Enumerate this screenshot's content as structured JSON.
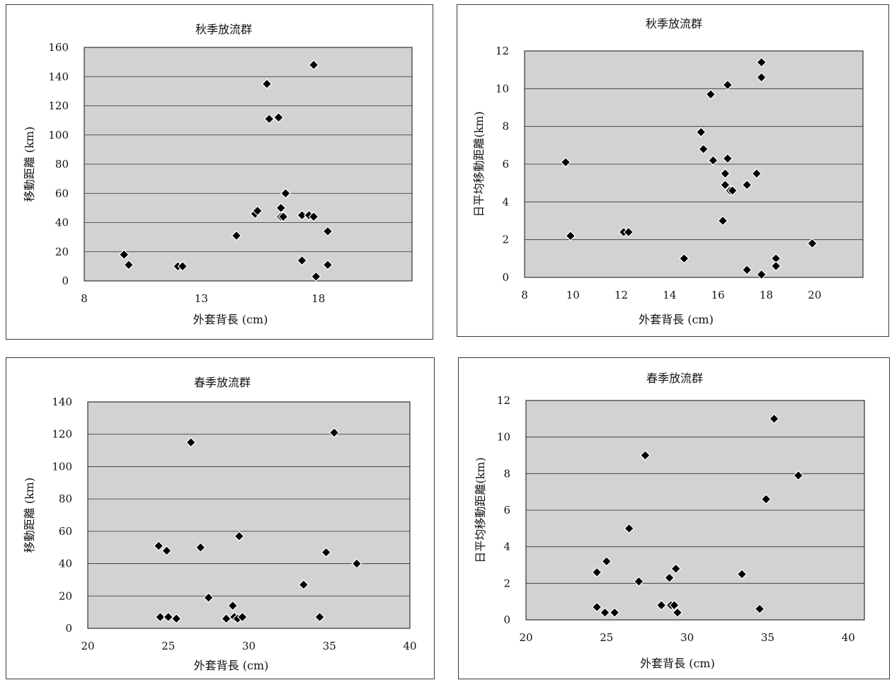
{
  "chart_data": [
    {
      "type": "scatter",
      "title": "秋季放流群",
      "xlabel": "外套背長 (cm)",
      "ylabel": "移動距離 (km)",
      "xlim": [
        8,
        22
      ],
      "ylim": [
        0,
        160
      ],
      "xticks": [
        8,
        13,
        18
      ],
      "yticks": [
        0,
        20,
        40,
        60,
        80,
        100,
        120,
        140,
        160
      ],
      "grid": true,
      "legend": "none",
      "x": [
        9.7,
        9.9,
        12.0,
        12.2,
        14.5,
        15.3,
        15.4,
        15.8,
        15.9,
        16.3,
        16.4,
        16.4,
        16.5,
        16.5,
        16.6,
        17.3,
        17.3,
        17.6,
        17.8,
        17.8,
        17.9,
        18.4,
        18.4
      ],
      "y": [
        18,
        11,
        10,
        10,
        31,
        46,
        48,
        135,
        111,
        112,
        44,
        50,
        44,
        44,
        60,
        45,
        14,
        45,
        44,
        148,
        3,
        34,
        11
      ]
    },
    {
      "type": "scatter",
      "title": "秋季放流群",
      "xlabel": "外套背長 (cm)",
      "ylabel": "日平均移動距離(km)",
      "xlim": [
        8,
        22
      ],
      "ylim": [
        0,
        12
      ],
      "xticks": [
        8,
        10,
        12,
        14,
        16,
        18,
        20
      ],
      "yticks": [
        0,
        2,
        4,
        6,
        8,
        10,
        12
      ],
      "grid": true,
      "legend": "none",
      "x": [
        9.7,
        9.9,
        12.1,
        12.3,
        14.6,
        15.3,
        15.4,
        15.7,
        15.8,
        16.2,
        16.3,
        16.3,
        16.4,
        16.4,
        16.5,
        16.6,
        17.2,
        17.2,
        17.6,
        17.8,
        17.8,
        17.8,
        18.4,
        18.4,
        19.9
      ],
      "y": [
        6.1,
        2.2,
        2.4,
        2.4,
        1.0,
        7.7,
        6.8,
        9.7,
        6.2,
        3.0,
        5.5,
        4.9,
        10.2,
        6.3,
        4.6,
        4.6,
        0.4,
        4.9,
        5.5,
        11.4,
        10.6,
        0.15,
        1.0,
        0.6,
        1.8
      ]
    },
    {
      "type": "scatter",
      "title": "春季放流群",
      "xlabel": "外套背長 (cm)",
      "ylabel": "移動距離 (km)",
      "xlim": [
        20,
        40
      ],
      "ylim": [
        0,
        140
      ],
      "xticks": [
        20,
        25,
        30,
        35,
        40
      ],
      "yticks": [
        0,
        20,
        40,
        60,
        80,
        100,
        120,
        140
      ],
      "grid": true,
      "legend": "none",
      "x": [
        24.4,
        24.5,
        24.9,
        25.0,
        25.5,
        26.4,
        27.0,
        27.5,
        28.6,
        29.0,
        29.1,
        29.3,
        29.4,
        29.6,
        33.4,
        34.4,
        34.8,
        35.3,
        36.7
      ],
      "y": [
        51,
        7,
        48,
        7,
        6,
        115,
        50,
        19,
        6,
        14,
        7,
        6,
        57,
        7,
        27,
        7,
        47,
        121,
        40
      ]
    },
    {
      "type": "scatter",
      "title": "春季放流群",
      "xlabel": "外套背長 (cm)",
      "ylabel": "日平均移動距離(km)",
      "xlim": [
        20,
        41
      ],
      "ylim": [
        0,
        12
      ],
      "xticks": [
        20,
        25,
        30,
        35,
        40
      ],
      "yticks": [
        0,
        2,
        4,
        6,
        8,
        10,
        12
      ],
      "grid": true,
      "legend": "none",
      "x": [
        24.4,
        24.4,
        24.9,
        25.0,
        25.5,
        26.4,
        27.0,
        27.4,
        28.4,
        28.9,
        29.0,
        29.2,
        29.3,
        29.4,
        33.4,
        34.5,
        34.9,
        35.4,
        36.9
      ],
      "y": [
        2.6,
        0.7,
        0.4,
        3.2,
        0.4,
        5.0,
        2.1,
        9.0,
        0.8,
        2.3,
        0.8,
        0.8,
        2.8,
        0.4,
        2.5,
        0.6,
        6.6,
        11.0,
        7.9
      ]
    }
  ]
}
